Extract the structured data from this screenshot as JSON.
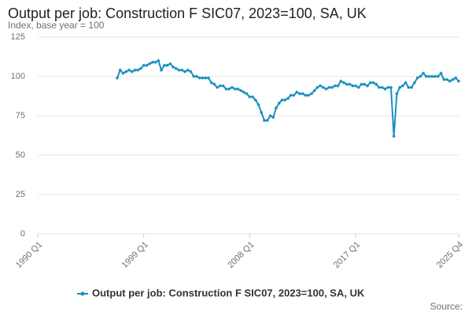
{
  "chart_data": {
    "type": "line",
    "title": "Output per job: Construction F SIC07, 2023=100, SA, UK",
    "subtitle": "Index, base year = 100",
    "source": "Source:",
    "categories": [
      "1990 Q1",
      null,
      null,
      null,
      null,
      null,
      null,
      null,
      null,
      null,
      null,
      null,
      null,
      null,
      null,
      null,
      null,
      null,
      null,
      null,
      null,
      null,
      null,
      null,
      null,
      null,
      null,
      null,
      null,
      null,
      null,
      null,
      null,
      null,
      null,
      null,
      "1999 Q1",
      null,
      null,
      null,
      null,
      null,
      null,
      null,
      null,
      null,
      null,
      null,
      null,
      null,
      null,
      null,
      null,
      null,
      null,
      null,
      null,
      null,
      null,
      null,
      null,
      null,
      null,
      null,
      null,
      null,
      null,
      null,
      null,
      null,
      null,
      null,
      "2008 Q1",
      null,
      null,
      null,
      null,
      null,
      null,
      null,
      null,
      null,
      null,
      null,
      null,
      null,
      null,
      null,
      null,
      null,
      null,
      null,
      null,
      null,
      null,
      null,
      null,
      null,
      null,
      null,
      null,
      null,
      null,
      null,
      null,
      null,
      null,
      null,
      "2017 Q1",
      null,
      null,
      null,
      null,
      null,
      null,
      null,
      null,
      null,
      null,
      null,
      null,
      null,
      null,
      null,
      null,
      null,
      null,
      null,
      null,
      null,
      null,
      null,
      null,
      null,
      null,
      null,
      null,
      null,
      null,
      null,
      null,
      null,
      null,
      "2025 Q4"
    ],
    "series": [
      {
        "name": "Output per job: Construction F SIC07, 2023=100, SA, UK",
        "color": "#1a8fc1",
        "values": [
          null,
          null,
          null,
          null,
          null,
          null,
          null,
          null,
          null,
          null,
          null,
          null,
          null,
          null,
          null,
          null,
          null,
          null,
          null,
          null,
          null,
          null,
          null,
          null,
          null,
          null,
          null,
          99,
          104,
          102,
          103,
          104,
          103,
          104,
          104,
          105,
          107,
          107,
          108,
          109,
          109,
          110,
          104,
          107,
          107,
          108,
          106,
          105,
          104,
          104,
          103,
          104,
          103,
          100,
          100,
          99,
          99,
          99,
          99,
          96,
          95,
          93,
          94,
          94,
          92,
          92,
          93,
          92,
          92,
          91,
          90,
          89,
          87,
          87,
          85,
          82,
          77,
          72,
          72,
          75,
          74,
          80,
          83,
          85,
          85,
          86,
          88,
          88,
          90,
          89,
          89,
          88,
          88,
          89,
          91,
          93,
          94,
          93,
          92,
          93,
          93,
          94,
          94,
          97,
          96,
          95,
          95,
          94,
          94,
          93,
          95,
          95,
          94,
          96,
          96,
          95,
          93,
          93,
          92,
          93,
          93,
          62,
          89,
          93,
          94,
          96,
          93,
          93,
          96,
          99,
          100,
          102,
          100,
          100,
          100,
          100,
          100,
          102,
          98,
          98,
          97,
          98,
          99,
          97
        ]
      }
    ],
    "ylim": [
      0,
      125
    ],
    "yticks": [
      0,
      25,
      50,
      75,
      100,
      125
    ],
    "grid": true
  }
}
